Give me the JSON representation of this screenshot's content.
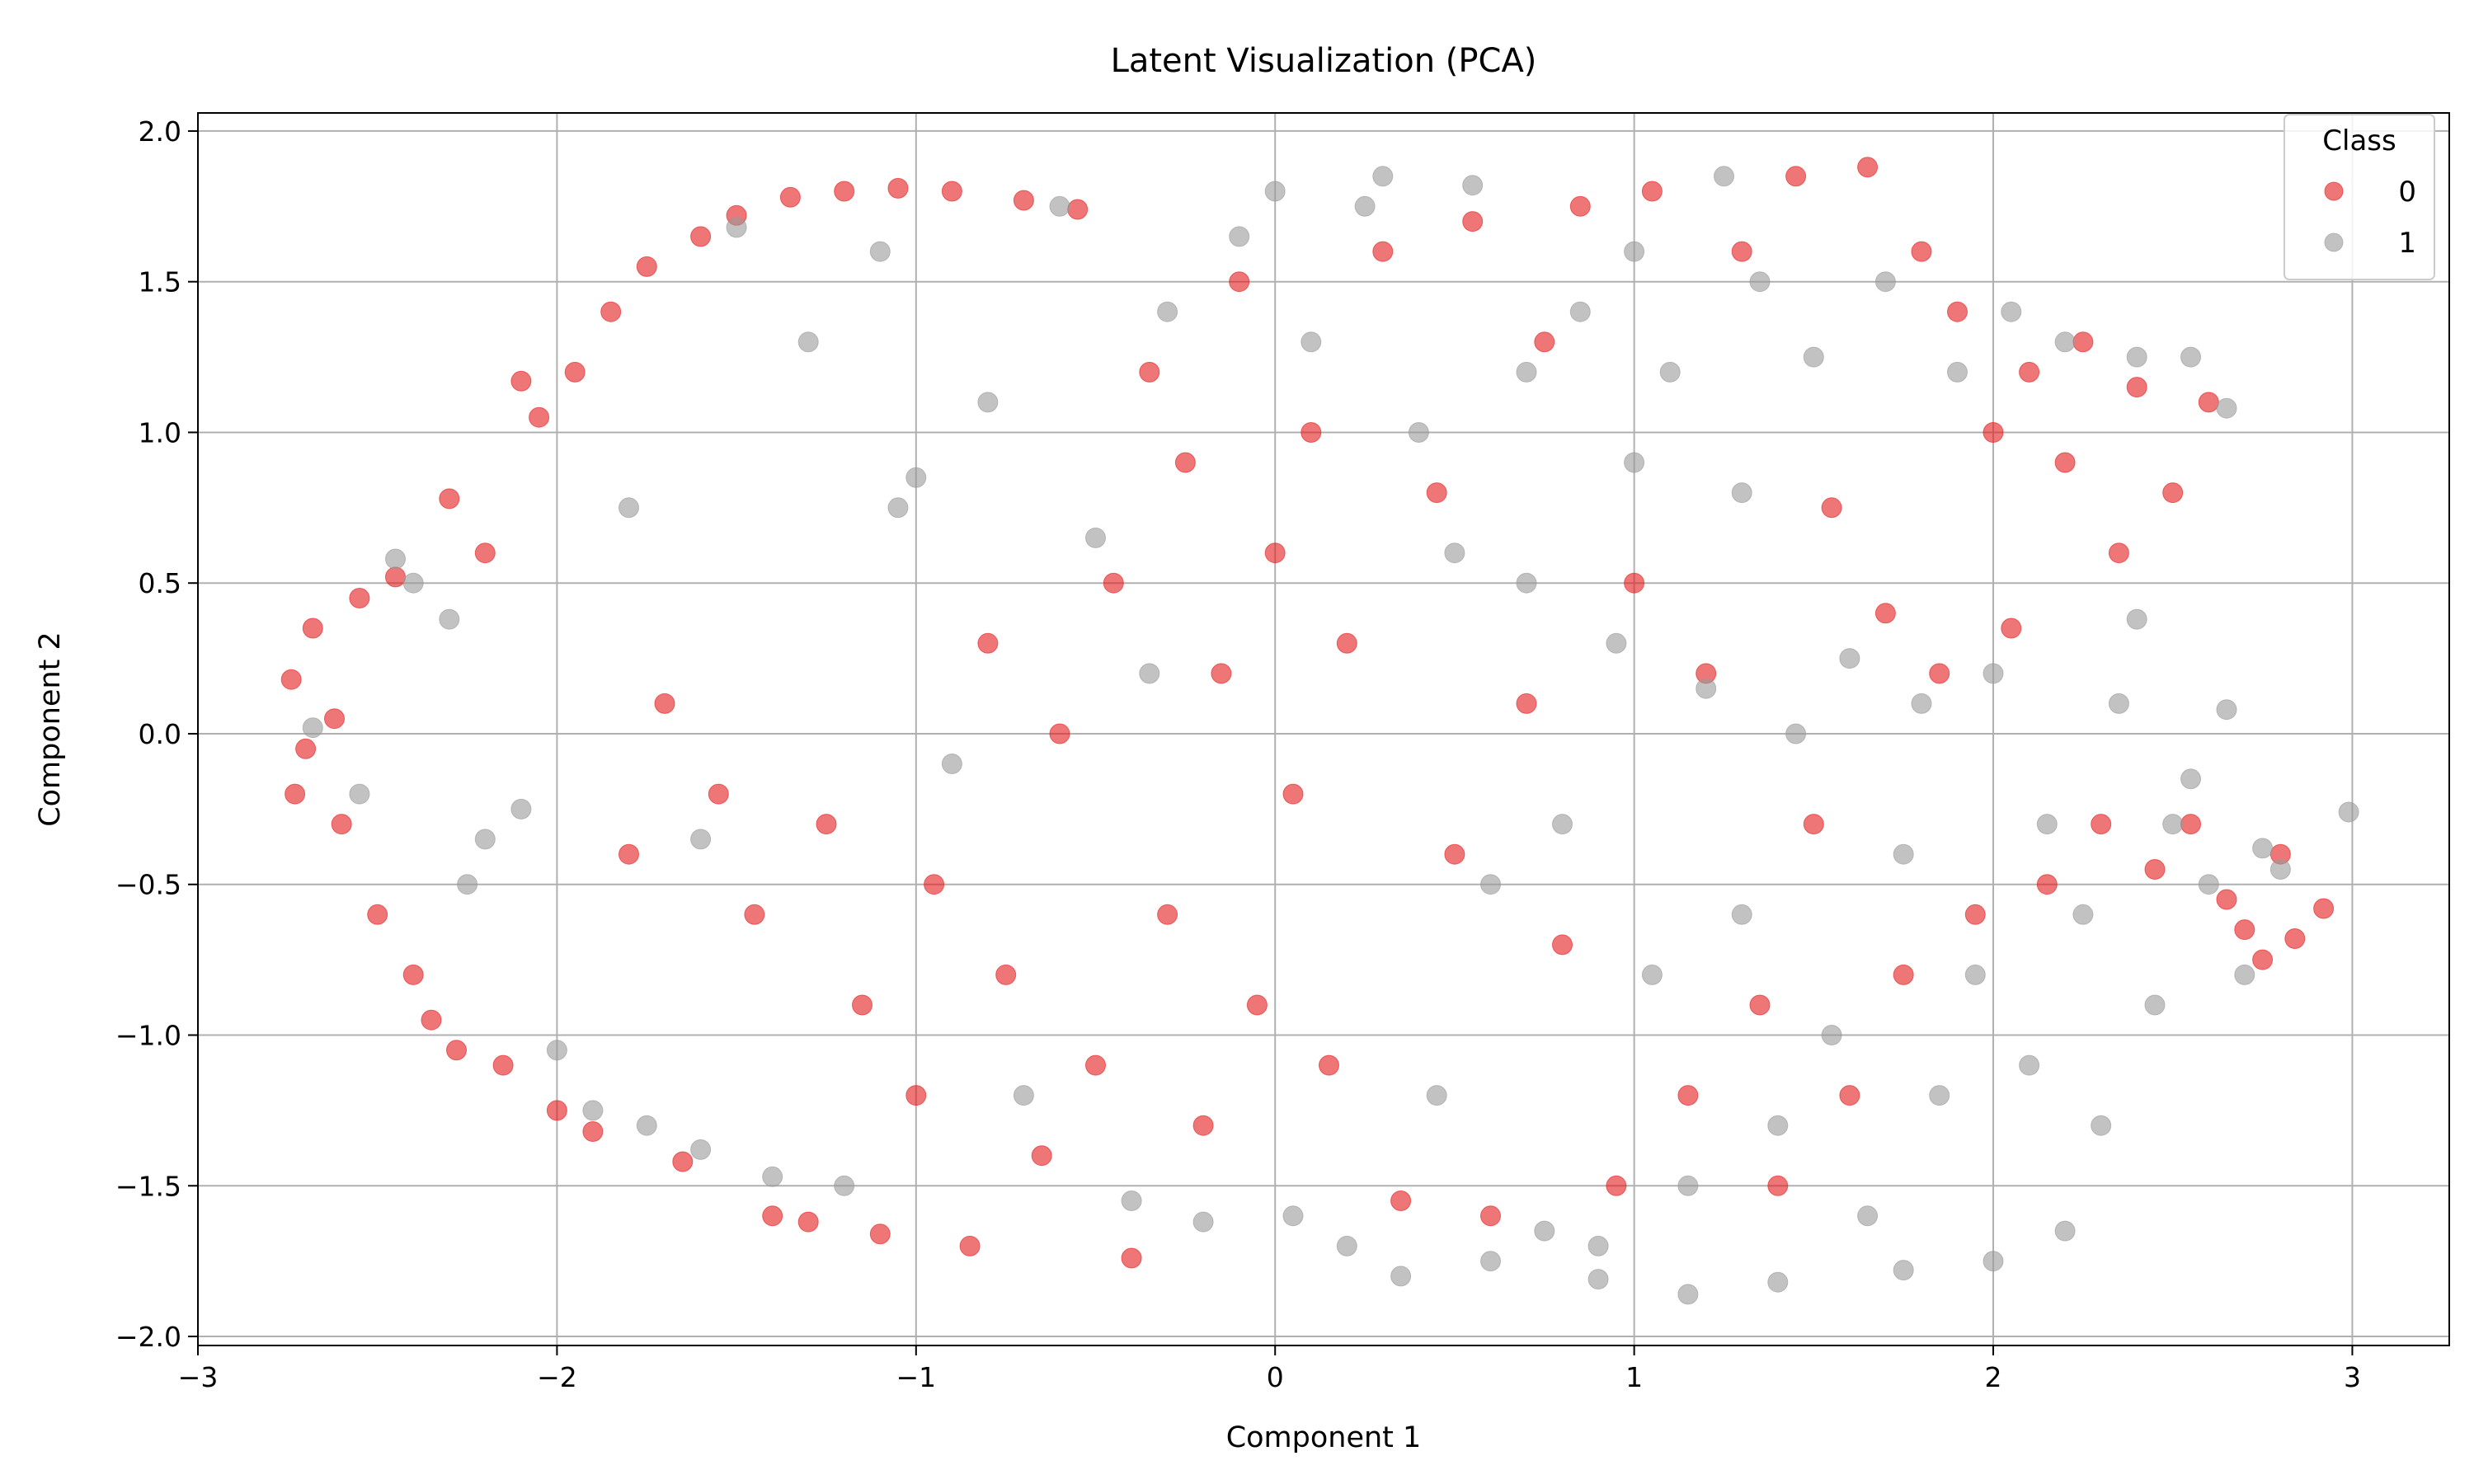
{
  "chart_data": {
    "type": "scatter",
    "title": "Latent Visualization (PCA)",
    "xlabel": "Component 1",
    "ylabel": "Component 2",
    "xlim": [
      -3.0,
      3.27
    ],
    "ylim": [
      -2.03,
      2.06
    ],
    "xticks": [
      -3,
      -2,
      -1,
      0,
      1,
      2,
      3
    ],
    "xtick_labels": [
      "−3",
      "−2",
      "−1",
      "0",
      "1",
      "2",
      "3"
    ],
    "yticks": [
      -2.0,
      -1.5,
      -1.0,
      -0.5,
      0.0,
      0.5,
      1.0,
      1.5,
      2.0
    ],
    "ytick_labels": [
      "−2.0",
      "−1.5",
      "−1.0",
      "−0.5",
      "0.0",
      "0.5",
      "1.0",
      "1.5",
      "2.0"
    ],
    "grid": true,
    "legend": {
      "title": "Class",
      "placement": "top-right"
    },
    "series": [
      {
        "name": "0",
        "color": "#e41a1c",
        "alpha": 0.6,
        "points": [
          [
            -2.74,
            0.18
          ],
          [
            -2.7,
            -0.05
          ],
          [
            -2.68,
            0.35
          ],
          [
            -2.6,
            -0.3
          ],
          [
            -2.55,
            0.45
          ],
          [
            -2.5,
            -0.6
          ],
          [
            -2.45,
            0.52
          ],
          [
            -2.4,
            -0.8
          ],
          [
            -2.35,
            -0.95
          ],
          [
            -2.3,
            0.78
          ],
          [
            -2.28,
            -1.05
          ],
          [
            -2.2,
            0.6
          ],
          [
            -2.15,
            -1.1
          ],
          [
            -2.1,
            1.17
          ],
          [
            -2.05,
            1.05
          ],
          [
            -2.0,
            -1.25
          ],
          [
            -1.95,
            1.2
          ],
          [
            -1.9,
            -1.32
          ],
          [
            -1.85,
            1.4
          ],
          [
            -1.8,
            -0.4
          ],
          [
            -1.75,
            1.55
          ],
          [
            -1.7,
            0.1
          ],
          [
            -1.65,
            -1.42
          ],
          [
            -1.6,
            1.65
          ],
          [
            -1.55,
            -0.2
          ],
          [
            -1.5,
            1.72
          ],
          [
            -1.45,
            -0.6
          ],
          [
            -1.4,
            -1.6
          ],
          [
            -1.35,
            1.78
          ],
          [
            -1.3,
            -1.62
          ],
          [
            -1.25,
            -0.3
          ],
          [
            -1.2,
            1.8
          ],
          [
            -1.15,
            -0.9
          ],
          [
            -1.1,
            -1.66
          ],
          [
            -1.05,
            1.81
          ],
          [
            -1.0,
            -1.2
          ],
          [
            -0.95,
            -0.5
          ],
          [
            -0.9,
            1.8
          ],
          [
            -0.85,
            -1.7
          ],
          [
            -0.8,
            0.3
          ],
          [
            -0.75,
            -0.8
          ],
          [
            -0.7,
            1.77
          ],
          [
            -0.65,
            -1.4
          ],
          [
            -0.6,
            0.0
          ],
          [
            -0.55,
            1.74
          ],
          [
            -0.5,
            -1.1
          ],
          [
            -0.45,
            0.5
          ],
          [
            -0.4,
            -1.74
          ],
          [
            -0.35,
            1.2
          ],
          [
            -0.3,
            -0.6
          ],
          [
            -0.25,
            0.9
          ],
          [
            -0.2,
            -1.3
          ],
          [
            -0.15,
            0.2
          ],
          [
            -0.1,
            1.5
          ],
          [
            -0.05,
            -0.9
          ],
          [
            0.0,
            0.6
          ],
          [
            0.05,
            -0.2
          ],
          [
            0.1,
            1.0
          ],
          [
            0.15,
            -1.1
          ],
          [
            0.2,
            0.3
          ],
          [
            0.3,
            1.6
          ],
          [
            0.35,
            -1.55
          ],
          [
            0.45,
            0.8
          ],
          [
            0.5,
            -0.4
          ],
          [
            0.55,
            1.7
          ],
          [
            0.6,
            -1.6
          ],
          [
            0.7,
            0.1
          ],
          [
            0.75,
            1.3
          ],
          [
            0.8,
            -0.7
          ],
          [
            0.85,
            1.75
          ],
          [
            0.95,
            -1.5
          ],
          [
            1.0,
            0.5
          ],
          [
            1.05,
            1.8
          ],
          [
            1.15,
            -1.2
          ],
          [
            1.2,
            0.2
          ],
          [
            1.3,
            1.6
          ],
          [
            1.35,
            -0.9
          ],
          [
            1.4,
            -1.5
          ],
          [
            1.45,
            1.85
          ],
          [
            1.5,
            -0.3
          ],
          [
            1.55,
            0.75
          ],
          [
            1.6,
            -1.2
          ],
          [
            1.65,
            1.88
          ],
          [
            1.7,
            0.4
          ],
          [
            1.75,
            -0.8
          ],
          [
            1.8,
            1.6
          ],
          [
            1.85,
            0.2
          ],
          [
            1.9,
            1.4
          ],
          [
            1.95,
            -0.6
          ],
          [
            2.0,
            1.0
          ],
          [
            2.05,
            0.35
          ],
          [
            2.1,
            1.2
          ],
          [
            2.15,
            -0.5
          ],
          [
            2.2,
            0.9
          ],
          [
            2.25,
            1.3
          ],
          [
            2.3,
            -0.3
          ],
          [
            2.35,
            0.6
          ],
          [
            2.4,
            1.15
          ],
          [
            2.45,
            -0.45
          ],
          [
            2.5,
            0.8
          ],
          [
            2.55,
            -0.3
          ],
          [
            2.6,
            1.1
          ],
          [
            2.65,
            -0.55
          ],
          [
            2.7,
            -0.65
          ],
          [
            2.75,
            -0.75
          ],
          [
            2.8,
            -0.4
          ],
          [
            2.84,
            -0.68
          ],
          [
            2.92,
            -0.58
          ],
          [
            -2.73,
            -0.2
          ],
          [
            -2.62,
            0.05
          ]
        ]
      },
      {
        "name": "1",
        "color": "#999999",
        "alpha": 0.6,
        "points": [
          [
            -2.68,
            0.02
          ],
          [
            -2.55,
            -0.2
          ],
          [
            -2.45,
            0.58
          ],
          [
            -2.4,
            0.5
          ],
          [
            -2.3,
            0.38
          ],
          [
            -2.25,
            -0.5
          ],
          [
            -2.1,
            -0.25
          ],
          [
            -2.0,
            -1.05
          ],
          [
            -1.9,
            -1.25
          ],
          [
            -1.8,
            0.75
          ],
          [
            -1.75,
            -1.3
          ],
          [
            -1.6,
            -1.38
          ],
          [
            -1.5,
            1.68
          ],
          [
            -1.4,
            -1.47
          ],
          [
            -1.3,
            1.3
          ],
          [
            -1.2,
            -1.5
          ],
          [
            -1.1,
            1.6
          ],
          [
            -1.0,
            0.85
          ],
          [
            -0.9,
            -0.1
          ],
          [
            -0.8,
            1.1
          ],
          [
            -0.7,
            -1.2
          ],
          [
            -0.6,
            1.75
          ],
          [
            -0.5,
            0.65
          ],
          [
            -0.4,
            -1.55
          ],
          [
            -0.3,
            1.4
          ],
          [
            -0.2,
            -1.62
          ],
          [
            -0.1,
            1.65
          ],
          [
            0.0,
            1.8
          ],
          [
            0.05,
            -1.6
          ],
          [
            0.1,
            1.3
          ],
          [
            0.2,
            -1.7
          ],
          [
            0.25,
            1.75
          ],
          [
            0.3,
            1.85
          ],
          [
            0.35,
            -1.8
          ],
          [
            0.4,
            1.0
          ],
          [
            0.45,
            -1.2
          ],
          [
            0.5,
            0.6
          ],
          [
            0.55,
            1.82
          ],
          [
            0.6,
            -0.5
          ],
          [
            0.7,
            1.2
          ],
          [
            0.75,
            -1.65
          ],
          [
            0.8,
            -0.3
          ],
          [
            0.85,
            1.4
          ],
          [
            0.9,
            -1.7
          ],
          [
            0.95,
            0.3
          ],
          [
            1.0,
            1.6
          ],
          [
            1.05,
            -0.8
          ],
          [
            1.1,
            1.2
          ],
          [
            1.15,
            -1.5
          ],
          [
            1.2,
            0.15
          ],
          [
            1.25,
            1.85
          ],
          [
            1.3,
            -0.6
          ],
          [
            1.35,
            1.5
          ],
          [
            1.4,
            -1.3
          ],
          [
            1.45,
            0.0
          ],
          [
            1.5,
            1.25
          ],
          [
            1.55,
            -1.0
          ],
          [
            1.6,
            0.25
          ],
          [
            1.65,
            -1.6
          ],
          [
            1.7,
            1.5
          ],
          [
            1.75,
            -0.4
          ],
          [
            1.8,
            0.1
          ],
          [
            1.85,
            -1.2
          ],
          [
            1.9,
            1.2
          ],
          [
            1.95,
            -0.8
          ],
          [
            2.0,
            0.2
          ],
          [
            2.05,
            1.4
          ],
          [
            2.1,
            -1.1
          ],
          [
            2.15,
            -0.3
          ],
          [
            2.2,
            1.3
          ],
          [
            2.25,
            -0.6
          ],
          [
            2.3,
            -1.3
          ],
          [
            2.35,
            0.1
          ],
          [
            2.4,
            1.25
          ],
          [
            2.45,
            -0.9
          ],
          [
            2.5,
            -0.3
          ],
          [
            2.55,
            1.25
          ],
          [
            2.6,
            -0.5
          ],
          [
            2.65,
            1.08
          ],
          [
            2.7,
            -0.8
          ],
          [
            2.75,
            -0.38
          ],
          [
            2.8,
            -0.45
          ],
          [
            2.99,
            -0.26
          ],
          [
            1.4,
            -1.82
          ],
          [
            1.15,
            -1.86
          ],
          [
            0.9,
            -1.81
          ],
          [
            2.0,
            -1.75
          ],
          [
            2.2,
            -1.65
          ],
          [
            1.75,
            -1.78
          ],
          [
            0.6,
            -1.75
          ],
          [
            2.4,
            0.38
          ],
          [
            2.65,
            0.08
          ],
          [
            2.55,
            -0.15
          ],
          [
            1.0,
            0.9
          ],
          [
            1.3,
            0.8
          ],
          [
            0.7,
            0.5
          ],
          [
            -0.35,
            0.2
          ],
          [
            -1.05,
            0.75
          ],
          [
            -1.6,
            -0.35
          ],
          [
            -2.2,
            -0.35
          ]
        ]
      }
    ]
  }
}
